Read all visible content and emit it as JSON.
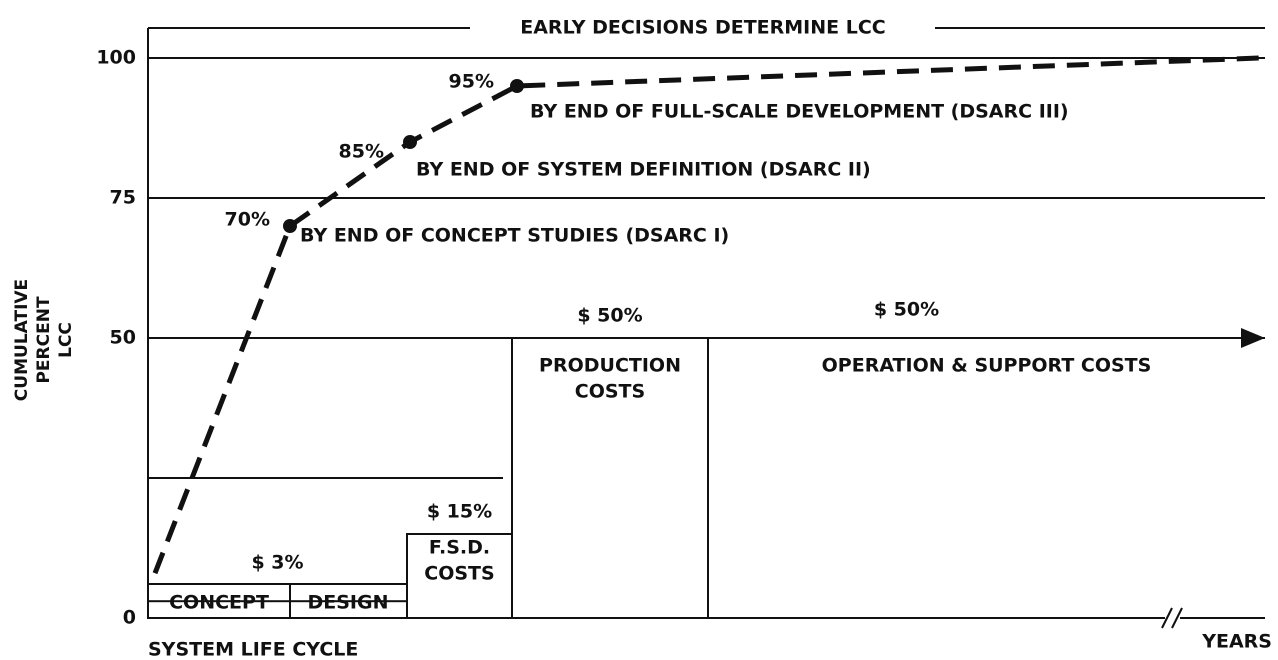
{
  "chart_data": {
    "type": "line",
    "title": "EARLY DECISIONS DETERMINE LCC",
    "y_label": [
      "CUMULATIVE",
      "PERCENT",
      "LCC"
    ],
    "x_label": "SYSTEM LIFE CYCLE",
    "x_end_label": "YEARS",
    "ylim": [
      0,
      100
    ],
    "yticks": [
      0,
      50,
      75,
      100
    ],
    "grid": true,
    "color": "#111111",
    "line": {
      "values": [
        8,
        70,
        85,
        95,
        100
      ],
      "value_labels": [
        null,
        "70%",
        "85%",
        "95%",
        null
      ]
    },
    "annotations": [
      "BY END OF CONCEPT STUDIES (DSARC I)",
      "BY END OF SYSTEM DEFINITION (DSARC II)",
      "BY END OF FULL-SCALE DEVELOPMENT (DSARC III)"
    ],
    "bars": [
      {
        "labels": [
          "CONCEPT",
          "DESIGN"
        ],
        "value": 3,
        "value_label": "$ 3%"
      },
      {
        "labels": [
          "F.S.D.",
          "COSTS"
        ],
        "value": 15,
        "value_label": "$ 15%"
      },
      {
        "labels": [
          "PRODUCTION",
          "COSTS"
        ],
        "value": 50,
        "value_label": "$ 50%"
      },
      {
        "labels": [
          "OPERATION & SUPPORT COSTS"
        ],
        "value": 50,
        "value_label": "$ 50%"
      }
    ]
  }
}
